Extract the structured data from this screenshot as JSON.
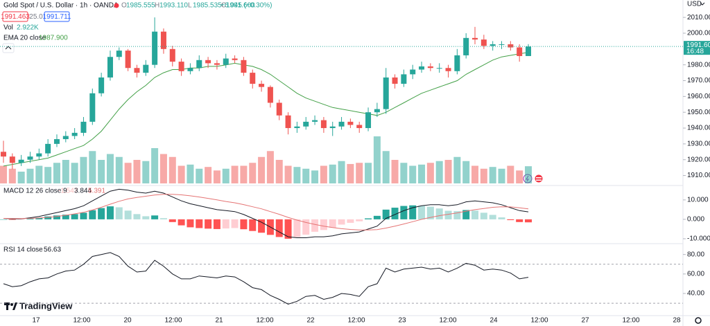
{
  "chart_data": [
    {
      "type": "candlestick",
      "title": "Gold Spot / U.S. Dollar · 1h · OANDA",
      "ohlc": [
        {
          "key": "O",
          "value": "1985.555"
        },
        {
          "key": "H",
          "value": "1993.110"
        },
        {
          "key": "L",
          "value": "1985.535"
        },
        {
          "key": "C",
          "value": "1991.600"
        }
      ],
      "change": "+6.045 (+0.30%)",
      "bid": "1991.463",
      "spread": "25.0",
      "ask": "1991.711",
      "currency": "USD",
      "last_price_label": "1991.600",
      "countdown": "16:48",
      "last_price": 1991.6,
      "up_color": "#26a69a",
      "down_color": "#ef5350",
      "open": [
        1925,
        1922,
        1918,
        1920,
        1922,
        1924,
        1930,
        1933,
        1935,
        1937,
        1944,
        1962,
        1972,
        1985,
        1989,
        1978,
        1975,
        1980,
        2001,
        1990,
        1982,
        1976,
        1978,
        1983,
        1981,
        1980,
        1984,
        1983,
        1975,
        1968,
        1966,
        1956,
        1948,
        1940,
        1941,
        1944,
        1945,
        1940,
        1941,
        1944,
        1942,
        1940,
        1950,
        1952,
        1972,
        1968,
        1974,
        1977,
        1979,
        1978,
        1978,
        1976,
        1986,
        1997,
        1996,
        1992,
        1993,
        1993,
        1991,
        1985.555
      ],
      "high": [
        1932,
        1924,
        1923,
        1925,
        1927,
        1933,
        1936,
        1938,
        1940,
        1947,
        1965,
        1975,
        1989,
        1991,
        1990,
        1980,
        1983,
        2010,
        2003,
        1992,
        1984,
        1981,
        1986,
        1985,
        1983,
        1987,
        1986,
        1985,
        1977,
        1970,
        1967,
        1958,
        1950,
        1944,
        1947,
        1948,
        1947,
        1944,
        1947,
        1946,
        1944,
        1953,
        1956,
        1978,
        1974,
        1977,
        1980,
        1982,
        1981,
        1981,
        1980,
        1990,
        2000,
        2004,
        1999,
        1995,
        1995,
        1995,
        1993,
        1993.11
      ],
      "low": [
        1918,
        1914,
        1916,
        1918,
        1920,
        1922,
        1928,
        1931,
        1933,
        1935,
        1942,
        1960,
        1970,
        1983,
        1976,
        1972,
        1973,
        1978,
        1987,
        1979,
        1973,
        1974,
        1976,
        1978,
        1977,
        1978,
        1981,
        1973,
        1965,
        1963,
        1953,
        1945,
        1936,
        1937,
        1939,
        1942,
        1937,
        1935,
        1939,
        1940,
        1937,
        1938,
        1947,
        1949,
        1965,
        1966,
        1971,
        1975,
        1976,
        1975,
        1972,
        1974,
        1984,
        1993,
        1990,
        1989,
        1990,
        1989,
        1982,
        1985.535
      ],
      "close": [
        1922,
        1918,
        1920,
        1922,
        1924,
        1930,
        1933,
        1935,
        1937,
        1944,
        1962,
        1972,
        1985,
        1989,
        1978,
        1975,
        1980,
        2001,
        1990,
        1982,
        1976,
        1978,
        1983,
        1981,
        1980,
        1984,
        1983,
        1975,
        1968,
        1966,
        1956,
        1948,
        1940,
        1941,
        1944,
        1945,
        1940,
        1941,
        1944,
        1942,
        1940,
        1950,
        1952,
        1972,
        1968,
        1974,
        1977,
        1979,
        1978,
        1978,
        1976,
        1986,
        1997,
        1996,
        1992,
        1993,
        1993,
        1991,
        1985.555,
        1991.6
      ],
      "volume": {
        "name": "Vol",
        "value_label": "2.922K",
        "values": [
          3,
          2.5,
          2,
          2.5,
          3,
          2.8,
          3.5,
          4,
          3.5,
          4.5,
          5.5,
          4,
          5,
          4.5,
          3.5,
          4,
          3.8,
          6,
          5,
          4.5,
          3,
          3.2,
          2.5,
          2.8,
          2.2,
          2.5,
          3,
          3,
          3.5,
          4.5,
          5.5,
          4,
          3,
          2.8,
          2.5,
          2.2,
          3,
          3.2,
          3.8,
          3.3,
          3.5,
          3.5,
          8,
          5.5,
          4,
          3.5,
          3,
          3.2,
          3.5,
          3.8,
          4,
          4.5,
          3.8,
          3,
          2.5,
          2.8,
          2.5,
          3,
          2.2,
          2.922
        ]
      },
      "ema": {
        "name": "EMA 20 close",
        "value_label": "1987.900",
        "color": "#43a047",
        "values": [
          1916,
          1917,
          1918,
          1919,
          1920,
          1921,
          1923,
          1925,
          1927,
          1929,
          1933,
          1938,
          1945,
          1952,
          1958,
          1963,
          1967,
          1972,
          1975,
          1977,
          1977,
          1978,
          1978,
          1979,
          1979,
          1980,
          1981,
          1980,
          1979,
          1977,
          1974,
          1970,
          1966,
          1962,
          1959,
          1957,
          1955,
          1953,
          1952,
          1951,
          1950,
          1949,
          1948,
          1950,
          1953,
          1956,
          1959,
          1962,
          1964,
          1966,
          1968,
          1970,
          1974,
          1977,
          1980,
          1983,
          1985,
          1986,
          1987,
          1987.9
        ]
      },
      "ylim": [
        1905,
        2021
      ],
      "yticks": [
        {
          "value": 2010,
          "label": "2010.000"
        },
        {
          "value": 2000,
          "label": "2000.000"
        },
        {
          "value": 1980,
          "label": "1980.000"
        },
        {
          "value": 1970,
          "label": "1970.000"
        },
        {
          "value": 1960,
          "label": "1960.000"
        },
        {
          "value": 1950,
          "label": "1950.000"
        },
        {
          "value": 1940,
          "label": "1940.000"
        },
        {
          "value": 1930,
          "label": "1930.000"
        },
        {
          "value": 1920,
          "label": "1920.000"
        },
        {
          "value": 1910,
          "label": "1910.000"
        }
      ],
      "x_labels": [
        "17",
        "12:00",
        "20",
        "12:00",
        "21",
        "12:00",
        "22",
        "12:00",
        "23",
        "12:00",
        "24",
        "12:00",
        "27",
        "12:00",
        "28"
      ],
      "brand": "TradingView"
    },
    {
      "type": "macd",
      "title": "MACD 12 26 close 9",
      "histogram_label": "-1.547",
      "macd_label": "3.844",
      "signal_label": "5.391",
      "macd_color": "#131722",
      "signal_color": "#e57373",
      "macd": [
        0.5,
        0.2,
        0.3,
        0.8,
        1.5,
        2.5,
        3.5,
        4.5,
        5.5,
        7,
        9.5,
        12,
        14.5,
        15.5,
        15,
        14,
        13.5,
        14.5,
        13.5,
        11.5,
        9.5,
        8,
        7,
        6,
        5,
        4.5,
        4,
        2.5,
        0.5,
        -1.5,
        -4,
        -6.5,
        -9,
        -9.5,
        -9.5,
        -9,
        -9,
        -8.5,
        -7.5,
        -7,
        -6.5,
        -5,
        -3.5,
        0.5,
        2.5,
        4.5,
        6,
        7,
        7.5,
        7.5,
        7,
        7.5,
        9,
        9.5,
        9,
        8.5,
        7.5,
        6,
        4.5,
        3.844
      ],
      "signal": [
        0.5,
        0.45,
        0.4,
        0.5,
        0.7,
        1,
        1.5,
        2.1,
        2.8,
        3.6,
        4.8,
        6.2,
        7.8,
        9.3,
        10.5,
        11.3,
        11.9,
        12.5,
        12.9,
        12.9,
        12.6,
        12.1,
        11.5,
        10.8,
        10,
        9.2,
        8.5,
        7.6,
        6.5,
        5.4,
        4,
        2.6,
        1,
        -0.4,
        -1.6,
        -2.6,
        -3.5,
        -4.2,
        -4.8,
        -5.2,
        -5.5,
        -5.5,
        -5.3,
        -4.5,
        -3.5,
        -2.4,
        -1.2,
        0,
        1,
        1.9,
        2.6,
        3.3,
        4.2,
        5,
        5.6,
        6.2,
        6.5,
        6.4,
        5.9,
        5.391
      ],
      "histogram": [
        0,
        -0.25,
        -0.1,
        0.3,
        0.8,
        1.5,
        2,
        2.4,
        2.7,
        3.4,
        4.7,
        5.8,
        6.7,
        6.2,
        4.5,
        2.7,
        1.6,
        2,
        0.6,
        -1.4,
        -3.1,
        -4.1,
        -4.5,
        -4.8,
        -5,
        -4.7,
        -4.5,
        -5.1,
        -6,
        -6.9,
        -8,
        -9.1,
        -10,
        -9.1,
        -7.9,
        -6.4,
        -5.5,
        -4.3,
        -2.7,
        -1.8,
        -1,
        0.5,
        1.8,
        5,
        6,
        6.9,
        7.2,
        7,
        6.5,
        5.6,
        4.4,
        4.2,
        4.8,
        4.5,
        3.4,
        2.3,
        1,
        -0.4,
        -1.4,
        -1.547
      ],
      "ylim": [
        -11.8,
        16
      ],
      "yticks": [
        {
          "value": 10,
          "label": "10.000"
        },
        {
          "value": 0,
          "label": "0.000"
        },
        {
          "value": -10,
          "label": "-10.000"
        }
      ]
    },
    {
      "type": "line",
      "title": "RSI 14 close",
      "value_label": "56.63",
      "color": "#131722",
      "values": [
        50,
        47,
        48,
        52,
        55,
        56,
        60,
        63,
        64,
        70,
        78,
        80,
        82,
        78,
        68,
        62,
        63,
        74,
        68,
        60,
        55,
        55,
        58,
        57,
        56,
        58,
        57,
        52,
        46,
        44,
        38,
        34,
        29,
        32,
        37,
        38,
        34,
        36,
        40,
        39,
        37,
        47,
        50,
        66,
        62,
        65,
        66,
        67,
        65,
        66,
        62,
        66,
        71,
        69,
        64,
        65,
        64,
        61,
        55,
        56.63
      ],
      "bands": [
        70,
        30
      ],
      "ylim": [
        18,
        89
      ],
      "yticks": [
        {
          "value": 80,
          "label": "80.00"
        },
        {
          "value": 60,
          "label": "60.00"
        },
        {
          "value": 40,
          "label": "40.00"
        }
      ]
    }
  ]
}
